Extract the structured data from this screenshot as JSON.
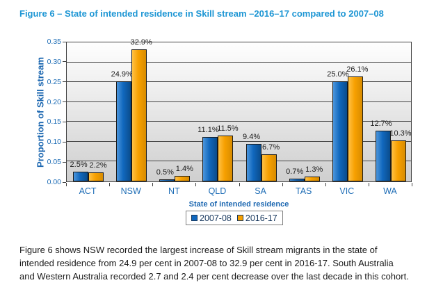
{
  "page": {
    "title": "Figure 6 – State of intended residence in Skill stream –2016–17 compared to 2007–08"
  },
  "chart_data": {
    "type": "bar",
    "title": "Figure 6 – State of intended residence in Skill stream –2016–17 compared to 2007–08",
    "categories": [
      "ACT",
      "NSW",
      "NT",
      "QLD",
      "SA",
      "TAS",
      "VIC",
      "WA"
    ],
    "series": [
      {
        "name": "2007-08",
        "values": [
          0.025,
          0.249,
          0.005,
          0.111,
          0.094,
          0.007,
          0.25,
          0.127
        ],
        "labels": [
          "2.5%",
          "24.9%",
          "0.5%",
          "11.1%",
          "9.4%",
          "0.7%",
          "25.0%",
          "12.7%"
        ],
        "color": "#1168be",
        "color_light": "#4c96dc",
        "color_dark": "#0a4c8c"
      },
      {
        "name": "2016-17",
        "values": [
          0.022,
          0.329,
          0.014,
          0.115,
          0.067,
          0.013,
          0.261,
          0.103
        ],
        "labels": [
          "2.2%",
          "32.9%",
          "1.4%",
          "11.5%",
          "6.7%",
          "1.3%",
          "26.1%",
          "10.3%"
        ],
        "color": "#f7a000",
        "color_light": "#ffc145",
        "color_dark": "#d88c00"
      }
    ],
    "xlabel": "State of intended residence",
    "ylabel": "Proportion of Skill stream",
    "ylim": [
      0,
      0.35
    ],
    "yticks": [
      0.0,
      0.05,
      0.1,
      0.15,
      0.2,
      0.25,
      0.3,
      0.35
    ],
    "ytick_labels": [
      "0.00",
      "0.05",
      "0.10",
      "0.15",
      "0.20",
      "0.25",
      "0.30",
      "0.35"
    ],
    "grid": true,
    "legend_position": "bottom-center"
  },
  "caption": {
    "line1": "Figure 6 shows NSW recorded the largest increase of Skill stream migrants in the state of",
    "line2": "intended residence from 24.9 per cent in 2007-08 to 32.9 per cent in 2016-17.  South Australia",
    "line3": "and Western Australia recorded 2.7 and 2.4 per cent decrease over the last decade in this cohort."
  },
  "colors": {
    "title_blue": "#1d96d4",
    "axis_label_blue": "#1e6db6",
    "axis_title_blue": "#1a66b0",
    "legend_text_navy": "#17375d",
    "gridline": "#404040",
    "plot_bg_top": "#fefefe",
    "plot_bg_bottom": "#cfcfcf",
    "data_label": "#1a1a1a"
  }
}
